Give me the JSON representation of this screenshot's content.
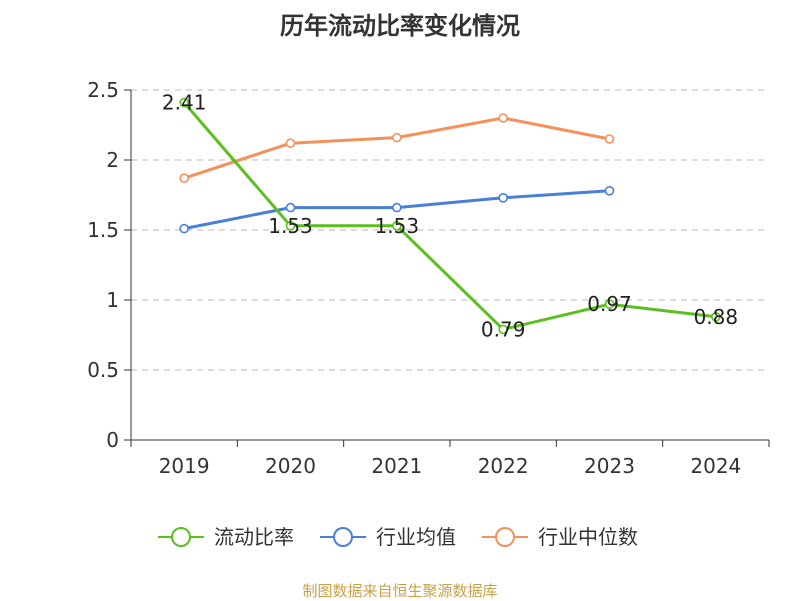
{
  "chart_data": {
    "type": "line",
    "title": "历年流动比率变化情况",
    "categories": [
      "2019",
      "2020",
      "2021",
      "2022",
      "2023",
      "2024"
    ],
    "ylim": [
      0,
      2.5
    ],
    "yticks": [
      0,
      0.5,
      1,
      1.5,
      2,
      2.5
    ],
    "ytick_labels": [
      "0",
      "0.5",
      "1",
      "1.5",
      "2",
      "2.5"
    ],
    "grid": true,
    "legend_position": "bottom",
    "series": [
      {
        "name": "流动比率",
        "color": "#5bbf1f",
        "values": [
          2.41,
          1.53,
          1.53,
          0.79,
          0.97,
          0.88
        ],
        "show_labels": true,
        "labels": [
          "2.41",
          "1.53",
          "1.53",
          "0.79",
          "0.97",
          "0.88"
        ]
      },
      {
        "name": "行业均值",
        "color": "#4a7fd6",
        "values": [
          1.51,
          1.66,
          1.66,
          1.73,
          1.78,
          null
        ],
        "show_labels": false
      },
      {
        "name": "行业中位数",
        "color": "#f5905a",
        "values": [
          1.87,
          2.12,
          2.16,
          2.3,
          2.15,
          null
        ],
        "show_labels": false
      }
    ]
  },
  "source": "制图数据来自恒生聚源数据库"
}
